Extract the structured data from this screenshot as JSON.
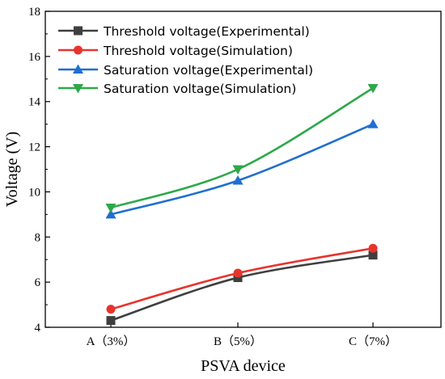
{
  "chart_data": {
    "type": "line",
    "title": "",
    "xlabel": "PSVA device",
    "ylabel": "Voltage (V)",
    "categories": [
      "A（3%）",
      "B（5%）",
      "C（7%）"
    ],
    "ylim": [
      4,
      18
    ],
    "yticks": [
      4,
      6,
      8,
      10,
      12,
      14,
      16,
      18
    ],
    "grid": false,
    "legend_position": "top-left",
    "smoothed": true,
    "series": [
      {
        "name": "Threshold voltage(Experimental)",
        "values": [
          4.3,
          6.2,
          7.2
        ],
        "color": "#3f3f3f",
        "marker": "square"
      },
      {
        "name": "Threshold voltage(Simulation)",
        "values": [
          4.8,
          6.4,
          7.5
        ],
        "color": "#e8332d",
        "marker": "circle"
      },
      {
        "name": "Saturation voltage(Experimental)",
        "values": [
          9.0,
          10.5,
          13.0
        ],
        "color": "#1f6fd1",
        "marker": "triangle-up"
      },
      {
        "name": "Saturation voltage(Simulation)",
        "values": [
          9.3,
          11.0,
          14.6
        ],
        "color": "#2ea84a",
        "marker": "triangle-down"
      }
    ]
  }
}
